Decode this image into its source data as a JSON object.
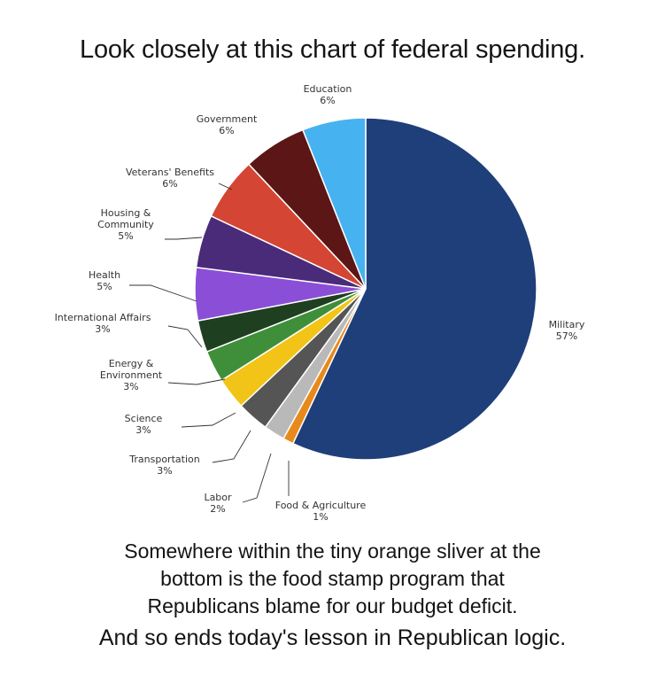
{
  "headline": "Look closely at this chart of federal spending.",
  "caption_lines": [
    "Somewhere within the tiny orange sliver at the",
    "bottom is the food stamp program that",
    "Republicans blame for our budget deficit."
  ],
  "closing": "And so ends today's lesson in Republican logic.",
  "chart_data": {
    "type": "pie",
    "title": "",
    "unit": "%",
    "slices": [
      {
        "name": "Military",
        "value": 57,
        "label": "57%",
        "color": "#1f3f7a"
      },
      {
        "name": "Food & Agriculture",
        "value": 1,
        "label": "1%",
        "color": "#e8891c"
      },
      {
        "name": "Labor",
        "value": 2,
        "label": "2%",
        "color": "#b9b9b9"
      },
      {
        "name": "Transportation",
        "value": 3,
        "label": "3%",
        "color": "#555555"
      },
      {
        "name": "Science",
        "value": 3,
        "label": "3%",
        "color": "#f2c418"
      },
      {
        "name": "Energy & Environment",
        "value": 3,
        "label": "3%",
        "color": "#3f8f3a"
      },
      {
        "name": "International Affairs",
        "value": 3,
        "label": "3%",
        "color": "#1f4020"
      },
      {
        "name": "Health",
        "value": 5,
        "label": "5%",
        "color": "#8a4fd6"
      },
      {
        "name": "Housing & Community",
        "value": 5,
        "label": "5%",
        "color": "#4a2b7a"
      },
      {
        "name": "Veterans' Benefits",
        "value": 6,
        "label": "6%",
        "color": "#d44533"
      },
      {
        "name": "Government",
        "value": 6,
        "label": "6%",
        "color": "#5c1616"
      },
      {
        "name": "Education",
        "value": 6,
        "label": "6%",
        "color": "#47b2f0"
      }
    ],
    "label_text": [
      {
        "lines": [
          "Military",
          "57%"
        ]
      },
      {
        "lines": [
          "Food & Agriculture",
          "1%"
        ]
      },
      {
        "lines": [
          "Labor",
          "2%"
        ]
      },
      {
        "lines": [
          "Transportation",
          "3%"
        ]
      },
      {
        "lines": [
          "Science",
          "3%"
        ]
      },
      {
        "lines": [
          "Energy &",
          "Environment",
          "3%"
        ]
      },
      {
        "lines": [
          "International Affairs",
          "3%"
        ]
      },
      {
        "lines": [
          "Health",
          "5%"
        ]
      },
      {
        "lines": [
          "Housing &",
          "Community",
          "5%"
        ]
      },
      {
        "lines": [
          "Veterans' Benefits",
          "6%"
        ]
      },
      {
        "lines": [
          "Government",
          "6%"
        ]
      },
      {
        "lines": [
          "Education",
          "6%"
        ]
      }
    ]
  }
}
